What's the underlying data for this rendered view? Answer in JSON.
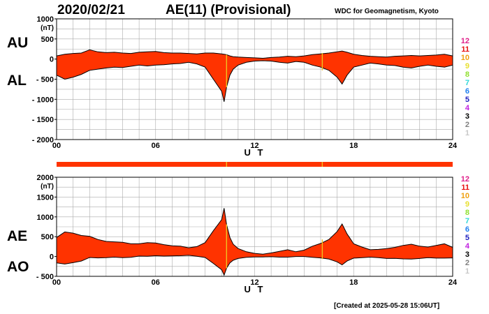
{
  "header": {
    "date": "2020/02/21",
    "title": "AE(11) (Provisional)",
    "source": "WDC for Geomagnetism, Kyoto"
  },
  "footer": {
    "created": "[Created at 2025-05-28 15:06UT]"
  },
  "labels": {
    "au": "AU",
    "al": "AL",
    "ae": "AE",
    "ao": "AO",
    "unit": "(nT)",
    "xlabel": "U T"
  },
  "legend": {
    "items": [
      {
        "label": "12",
        "color": "#e0208a"
      },
      {
        "label": "11",
        "color": "#e81010"
      },
      {
        "label": "10",
        "color": "#f0a010"
      },
      {
        "label": "9",
        "color": "#e8e030"
      },
      {
        "label": "8",
        "color": "#90e030"
      },
      {
        "label": "7",
        "color": "#30d8d8"
      },
      {
        "label": "6",
        "color": "#2080f0"
      },
      {
        "label": "5",
        "color": "#2020c0"
      },
      {
        "label": "4",
        "color": "#c020e0"
      },
      {
        "label": "3",
        "color": "#000000"
      },
      {
        "label": "2",
        "color": "#808080"
      },
      {
        "label": "1",
        "color": "#c8c8c8"
      }
    ]
  },
  "colors": {
    "fill": "#ff3300",
    "line": "#000000",
    "marker": "#f0c020",
    "grid": "#aaaaaa"
  },
  "chart_data": [
    {
      "type": "area",
      "name": "AU/AL",
      "title": "",
      "xlabel": "U T",
      "ylabel": "(nT)",
      "xlim": [
        0,
        24
      ],
      "ylim": [
        -2000,
        1000
      ],
      "x_ticks": [
        "00",
        "06",
        "12",
        "18",
        "24"
      ],
      "y_ticks": [
        "1000",
        "500",
        "0",
        "- 500",
        "- 1000",
        "- 1500",
        "- 2000"
      ],
      "grid": true,
      "markers_ut": [
        10.3,
        16.1
      ],
      "series": [
        {
          "name": "AU",
          "x": [
            0,
            0.5,
            1,
            1.5,
            2,
            2.5,
            3,
            3.5,
            4,
            4.5,
            5,
            5.5,
            6,
            6.5,
            7,
            7.5,
            8,
            8.5,
            9,
            9.5,
            10,
            10.15,
            10.3,
            10.5,
            10.7,
            11,
            11.5,
            12,
            12.5,
            13,
            13.5,
            14,
            14.5,
            15,
            15.5,
            16,
            16.5,
            17,
            17.3,
            17.6,
            18,
            18.5,
            19,
            19.5,
            20,
            20.5,
            21,
            21.5,
            22,
            22.5,
            23,
            23.5,
            24
          ],
          "values": [
            80,
            120,
            140,
            150,
            230,
            180,
            160,
            170,
            150,
            140,
            170,
            180,
            190,
            160,
            150,
            150,
            140,
            130,
            150,
            150,
            130,
            120,
            110,
            80,
            60,
            50,
            40,
            30,
            20,
            40,
            50,
            70,
            60,
            80,
            110,
            130,
            150,
            180,
            200,
            170,
            120,
            90,
            70,
            60,
            50,
            70,
            80,
            90,
            80,
            90,
            100,
            120,
            80
          ]
        },
        {
          "name": "AL",
          "x": [
            0,
            0.5,
            1,
            1.5,
            2,
            2.5,
            3,
            3.5,
            4,
            4.5,
            5,
            5.5,
            6,
            6.5,
            7,
            7.5,
            8,
            8.5,
            9,
            9.5,
            10,
            10.15,
            10.3,
            10.5,
            10.7,
            11,
            11.5,
            12,
            12.5,
            13,
            13.5,
            14,
            14.5,
            15,
            15.5,
            16,
            16.5,
            17,
            17.3,
            17.6,
            18,
            18.5,
            19,
            19.5,
            20,
            20.5,
            21,
            21.5,
            22,
            22.5,
            23,
            23.5,
            24
          ],
          "values": [
            -400,
            -500,
            -450,
            -380,
            -280,
            -250,
            -220,
            -200,
            -210,
            -180,
            -150,
            -170,
            -150,
            -140,
            -120,
            -110,
            -80,
            -120,
            -200,
            -500,
            -800,
            -1060,
            -700,
            -400,
            -250,
            -150,
            -80,
            -50,
            -40,
            -50,
            -80,
            -100,
            -60,
            -80,
            -150,
            -200,
            -280,
            -450,
            -620,
            -400,
            -200,
            -150,
            -100,
            -120,
            -150,
            -160,
            -200,
            -220,
            -180,
            -150,
            -180,
            -200,
            -150
          ]
        }
      ]
    },
    {
      "type": "area",
      "name": "AE/AO",
      "title": "",
      "xlabel": "U T",
      "ylabel": "(nT)",
      "xlim": [
        0,
        24
      ],
      "ylim": [
        -500,
        2000
      ],
      "x_ticks": [
        "00",
        "06",
        "12",
        "18",
        "24"
      ],
      "y_ticks": [
        "2000",
        "1500",
        "1000",
        "500",
        "0",
        "- 500"
      ],
      "grid": true,
      "markers_ut": [
        10.3,
        16.1
      ],
      "series": [
        {
          "name": "AE",
          "x": [
            0,
            0.5,
            1,
            1.5,
            2,
            2.5,
            3,
            3.5,
            4,
            4.5,
            5,
            5.5,
            6,
            6.5,
            7,
            7.5,
            8,
            8.5,
            9,
            9.5,
            10,
            10.15,
            10.3,
            10.5,
            10.7,
            11,
            11.5,
            12,
            12.5,
            13,
            13.5,
            14,
            14.5,
            15,
            15.5,
            16,
            16.5,
            17,
            17.3,
            17.6,
            18,
            18.5,
            19,
            19.5,
            20,
            20.5,
            21,
            21.5,
            22,
            22.5,
            23,
            23.5,
            24
          ],
          "values": [
            480,
            620,
            590,
            530,
            510,
            430,
            380,
            370,
            360,
            320,
            320,
            350,
            340,
            300,
            270,
            260,
            220,
            250,
            350,
            650,
            930,
            1220,
            810,
            480,
            310,
            200,
            120,
            80,
            60,
            90,
            130,
            170,
            120,
            160,
            260,
            330,
            430,
            630,
            820,
            570,
            320,
            240,
            170,
            180,
            200,
            230,
            280,
            310,
            260,
            240,
            280,
            320,
            230
          ]
        },
        {
          "name": "AO",
          "x": [
            0,
            0.5,
            1,
            1.5,
            2,
            2.5,
            3,
            3.5,
            4,
            4.5,
            5,
            5.5,
            6,
            6.5,
            7,
            7.5,
            8,
            8.5,
            9,
            9.5,
            10,
            10.15,
            10.3,
            10.5,
            10.7,
            11,
            11.5,
            12,
            12.5,
            13,
            13.5,
            14,
            14.5,
            15,
            15.5,
            16,
            16.5,
            17,
            17.3,
            17.6,
            18,
            18.5,
            19,
            19.5,
            20,
            20.5,
            21,
            21.5,
            22,
            22.5,
            23,
            23.5,
            24
          ],
          "values": [
            -160,
            -190,
            -155,
            -115,
            -25,
            -35,
            -30,
            -15,
            -30,
            -20,
            10,
            5,
            20,
            10,
            15,
            20,
            30,
            5,
            -25,
            -175,
            -335,
            -470,
            -295,
            -160,
            -95,
            -50,
            -20,
            -10,
            -10,
            -5,
            -15,
            -15,
            0,
            0,
            -20,
            -35,
            -65,
            -135,
            -210,
            -115,
            -40,
            -30,
            -15,
            -30,
            -50,
            -45,
            -60,
            -65,
            -50,
            -30,
            -40,
            -40,
            -35
          ]
        }
      ]
    }
  ]
}
